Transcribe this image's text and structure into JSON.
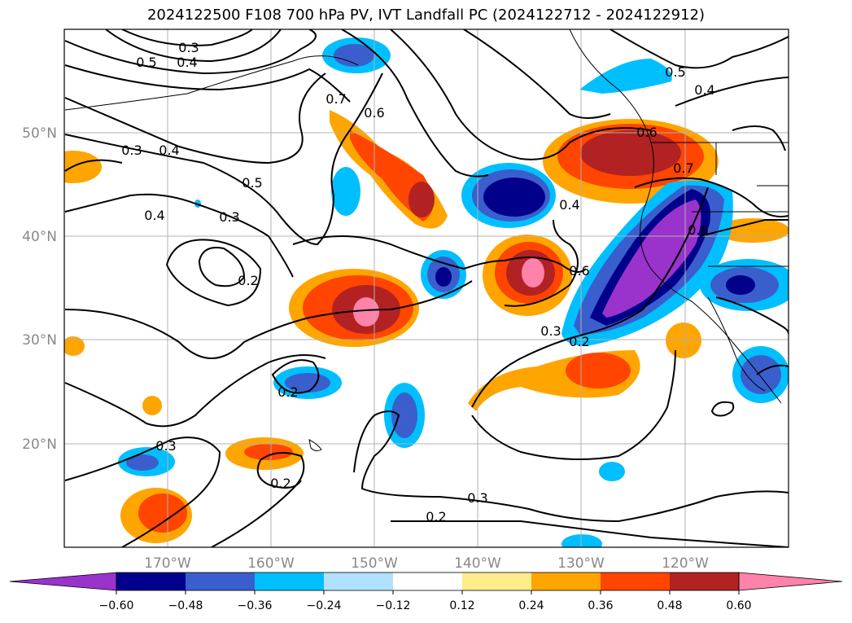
{
  "title": "2024122500 F108 700 hPa PV, IVT Landfall PC (2024122712 - 2024122912)",
  "lat_labels": [
    "50°N",
    "40°N",
    "30°N",
    "20°N"
  ],
  "lon_labels": [
    "170°W",
    "160°W",
    "150°W",
    "140°W",
    "130°W",
    "120°W"
  ],
  "contour_labels": [
    "0.3",
    "0.4",
    "0.5",
    "0.5",
    "0.4",
    "0.3",
    "0.4",
    "0.5",
    "0.6",
    "0.7",
    "0.3",
    "0.2",
    "0.4",
    "0.6",
    "0.3",
    "0.2",
    "0.2",
    "0.3",
    "0.2",
    "0.3",
    "0.2",
    "0.7",
    "0.6",
    "0.4",
    "0.6"
  ],
  "colorbar": {
    "ticks": [
      "−0.60",
      "−0.48",
      "−0.36",
      "−0.24",
      "−0.12",
      "0.12",
      "0.24",
      "0.36",
      "0.48",
      "0.60"
    ],
    "colors": [
      "#9933cc",
      "#00008b",
      "#3a5fcd",
      "#00bfff",
      "#b0e2ff",
      "#ffffff",
      "#ffec8b",
      "#ffa500",
      "#ff4500",
      "#b22222",
      "#ff82ab"
    ]
  }
}
